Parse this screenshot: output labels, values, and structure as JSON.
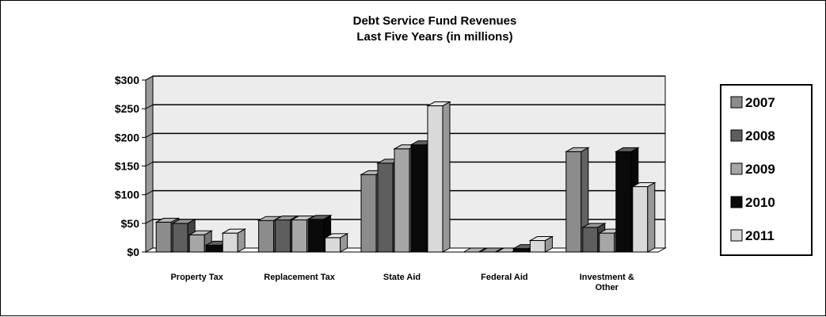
{
  "chart_data": {
    "type": "bar",
    "title": [
      "Debt Service Fund Revenues",
      "Last Five Years (in millions)"
    ],
    "xlabel": "",
    "ylabel": "",
    "ylim": [
      0,
      300
    ],
    "ytick_labels": [
      "$0",
      "$50",
      "$100",
      "$150",
      "$200",
      "$250",
      "$300"
    ],
    "categories": [
      [
        "Property Tax"
      ],
      [
        "Replacement Tax"
      ],
      [
        "State Aid"
      ],
      [
        "Federal Aid"
      ],
      [
        "Investment  &",
        "Other"
      ]
    ],
    "series": [
      {
        "name": "2007",
        "color": "#8c8c8c",
        "values": [
          52,
          55,
          135,
          0,
          175
        ]
      },
      {
        "name": "2008",
        "color": "#5e5e5e",
        "values": [
          50,
          56,
          155,
          0,
          43
        ]
      },
      {
        "name": "2009",
        "color": "#a6a6a6",
        "values": [
          30,
          56,
          180,
          0,
          33
        ]
      },
      {
        "name": "2010",
        "color": "#0a0a0a",
        "values": [
          12,
          57,
          187,
          6,
          175
        ]
      },
      {
        "name": "2011",
        "color": "#d9d9d9",
        "values": [
          33,
          25,
          255,
          20,
          114
        ]
      }
    ],
    "grid": true,
    "legend_position": "right",
    "style": "3d-clustered-column",
    "plot_background": "#ececec"
  }
}
